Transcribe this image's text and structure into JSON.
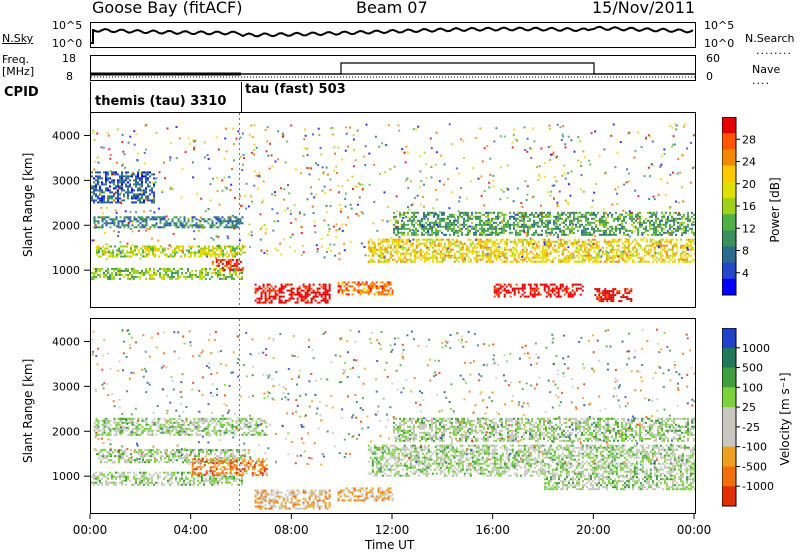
{
  "header": {
    "station": "Goose Bay (fitACF)",
    "beam": "Beam 07",
    "date": "15/Nov/2011"
  },
  "top_panel": {
    "nsky_label": "N.Sky",
    "nsearch_label": "N.Search",
    "noise_ticks_left": [
      "10^5",
      "10^0"
    ],
    "noise_ticks_right": [
      "10^5",
      "10^0"
    ],
    "freq_label_1": "Freq.",
    "freq_label_2": "[MHz]",
    "freq_ticks": [
      "18",
      "8"
    ],
    "nave_label": "Nave",
    "nave_ticks": [
      "60",
      "0"
    ],
    "cpid_label": "CPID",
    "cpid_segments": [
      "themis (tau) 3310",
      "tau (fast) 503"
    ]
  },
  "chart_data": [
    {
      "type": "heatmap",
      "title": "",
      "xlabel": "",
      "ylabel": "Slant Range [km]",
      "xlim": [
        0,
        24
      ],
      "ylim": [
        180,
        4500
      ],
      "xticks": [
        "00:00",
        "04:00",
        "08:00",
        "12:00",
        "16:00",
        "20:00",
        "00:00"
      ],
      "yticks": [
        1000,
        2000,
        3000,
        4000
      ],
      "colorbar": {
        "label": "Power [dB]",
        "ticks": [
          "28",
          "24",
          "20",
          "16",
          "12",
          "8",
          "4"
        ],
        "colors": [
          "#e60000",
          "#ff5500",
          "#f08a00",
          "#ffc800",
          "#e0e000",
          "#9fd21e",
          "#4fb04a",
          "#3c8f5c",
          "#2a6b8f",
          "#2548c8",
          "#0000ff"
        ]
      },
      "bands": [
        {
          "t0": 0.0,
          "t1": 6.0,
          "r0": 800,
          "r1": 1050,
          "level": 6
        },
        {
          "t0": 0.2,
          "t1": 6.1,
          "r0": 1300,
          "r1": 1550,
          "level": 5
        },
        {
          "t0": 0.1,
          "t1": 6.0,
          "r0": 1950,
          "r1": 2200,
          "level": 8
        },
        {
          "t0": 0.0,
          "t1": 2.5,
          "r0": 2500,
          "r1": 3200,
          "level": 9
        },
        {
          "t0": 4.8,
          "t1": 6.0,
          "r0": 1000,
          "r1": 1250,
          "level": 1
        },
        {
          "t0": 6.5,
          "t1": 9.5,
          "r0": 280,
          "r1": 700,
          "level": 0
        },
        {
          "t0": 9.8,
          "t1": 12.0,
          "r0": 450,
          "r1": 750,
          "level": 2
        },
        {
          "t0": 11.0,
          "t1": 24.0,
          "r0": 1200,
          "r1": 1700,
          "level": 4
        },
        {
          "t0": 16.0,
          "t1": 19.5,
          "r0": 400,
          "r1": 700,
          "level": 0
        },
        {
          "t0": 20.0,
          "t1": 21.5,
          "r0": 300,
          "r1": 600,
          "level": 0
        },
        {
          "t0": 12.0,
          "t1": 24.0,
          "r0": 1800,
          "r1": 2300,
          "level": 7
        }
      ]
    },
    {
      "type": "heatmap",
      "title": "",
      "xlabel": "Time UT",
      "ylabel": "Slant Range [km]",
      "xlim": [
        0,
        24
      ],
      "ylim": [
        180,
        4500
      ],
      "xticks": [
        "00:00",
        "04:00",
        "08:00",
        "12:00",
        "16:00",
        "20:00",
        "00:00"
      ],
      "yticks": [
        1000,
        2000,
        3000,
        4000
      ],
      "colorbar": {
        "label": "Velocity [m s⁻¹]",
        "ticks": [
          "1000",
          "500",
          "100",
          "25",
          "-25",
          "-100",
          "-500",
          "-1000"
        ],
        "colors": [
          "#2040c8",
          "#1f7a5a",
          "#3f9f3f",
          "#7ad23c",
          "#c8c8c0",
          "#c8c8c0",
          "#f0a020",
          "#f07010",
          "#e03000"
        ]
      },
      "bands": [
        {
          "t0": 0.0,
          "t1": 6.0,
          "r0": 800,
          "r1": 1100,
          "level": 4
        },
        {
          "t0": 0.2,
          "t1": 6.1,
          "r0": 1300,
          "r1": 1600,
          "level": 4
        },
        {
          "t0": 0.1,
          "t1": 7.0,
          "r0": 1900,
          "r1": 2300,
          "level": 4
        },
        {
          "t0": 4.0,
          "t1": 7.0,
          "r0": 1000,
          "r1": 1400,
          "level": 7
        },
        {
          "t0": 6.5,
          "t1": 9.5,
          "r0": 280,
          "r1": 700,
          "level": 6
        },
        {
          "t0": 9.8,
          "t1": 12.0,
          "r0": 450,
          "r1": 750,
          "level": 6
        },
        {
          "t0": 11.0,
          "t1": 24.0,
          "r0": 1000,
          "r1": 1700,
          "level": 4
        },
        {
          "t0": 18.0,
          "t1": 24.0,
          "r0": 700,
          "r1": 1000,
          "level": 4
        },
        {
          "t0": 12.0,
          "t1": 24.0,
          "r0": 1800,
          "r1": 2300,
          "level": 4
        }
      ]
    }
  ]
}
